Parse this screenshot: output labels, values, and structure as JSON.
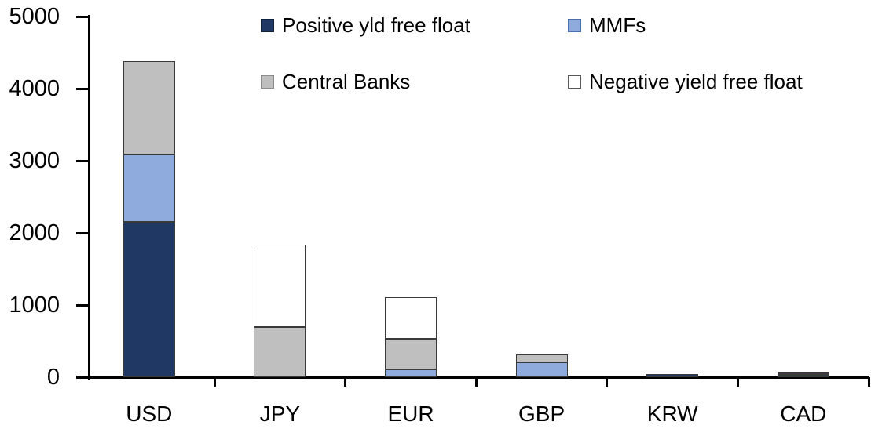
{
  "chart_data": {
    "type": "bar",
    "stacked": true,
    "title": "",
    "xlabel": "",
    "ylabel": "",
    "categories": [
      "USD",
      "JPY",
      "EUR",
      "GBP",
      "KRW",
      "CAD"
    ],
    "series": [
      {
        "name": "Positive yld free float",
        "color": "#1F3864",
        "values": [
          2150,
          0,
          0,
          0,
          45,
          30
        ]
      },
      {
        "name": "MMFs",
        "color": "#8FAADC",
        "values": [
          940,
          0,
          110,
          210,
          0,
          10
        ]
      },
      {
        "name": "Central Banks",
        "color": "#BFBFBF",
        "values": [
          1290,
          700,
          420,
          110,
          0,
          25
        ]
      },
      {
        "name": "Negative yield free float",
        "color": "#FFFFFF",
        "values": [
          0,
          1140,
          580,
          0,
          0,
          0
        ]
      }
    ],
    "totals": {
      "USD": 4380,
      "JPY": 1840,
      "EUR": 1110,
      "GBP": 320,
      "KRW": 45,
      "CAD": 65
    },
    "ylim": [
      0,
      5000
    ],
    "yticks": [
      0,
      1000,
      2000,
      3000,
      4000,
      5000
    ],
    "legend_position": "top-inside",
    "grid": false
  },
  "colors": {
    "axis": "#000000",
    "text": "#000000",
    "background": "#FFFFFF",
    "segment_border": "#3A3A3A",
    "swatch_borders": [
      "#11203B",
      "#4A6FAE",
      "#8C8C8C",
      "#595959"
    ]
  }
}
